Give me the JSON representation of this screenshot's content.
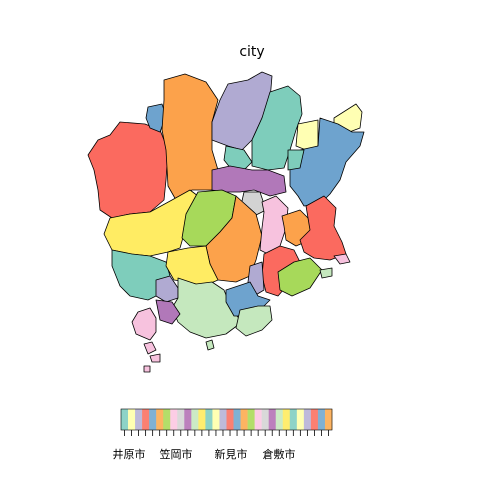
{
  "title": "city",
  "legend": {
    "labels": [
      "井原市",
      "笠岡市",
      "新見市",
      "倉敷市"
    ],
    "swatch_colors": [
      "#8DD3C7",
      "#FFFFB3",
      "#BEBADA",
      "#FB8072",
      "#80B1D3",
      "#FDB462",
      "#B3DE69",
      "#FCCDE5",
      "#D9D9D9",
      "#BC80BD",
      "#CCEBC5",
      "#FFED6F",
      "#8DD3C7",
      "#FFFFB3",
      "#BEBADA",
      "#FB8072",
      "#80B1D3",
      "#FDB462",
      "#B3DE69",
      "#FCCDE5",
      "#D9D9D9",
      "#BC80BD",
      "#CCEBC5",
      "#FFED6F",
      "#8DD3C7",
      "#FFFFB3",
      "#BEBADA",
      "#FB8072",
      "#80B1D3",
      "#FDB462"
    ]
  },
  "palette": {
    "red": "#FB6A5F",
    "orange": "#FCA24B",
    "lavender": "#B0AAD2",
    "teal": "#7ECDBB",
    "blue": "#6EA3CE",
    "lightyellow": "#FFFFB3",
    "yellow": "#FFEC63",
    "green": "#A7D95A",
    "pink": "#F7C2DE",
    "purple": "#B178B9",
    "mint": "#C5E8BE",
    "gray": "#D3D3D3"
  }
}
